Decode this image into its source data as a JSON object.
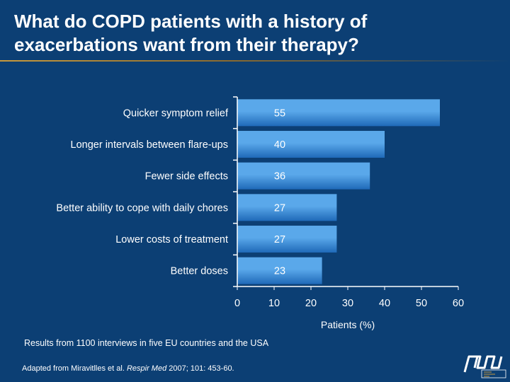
{
  "slide": {
    "title": "What do COPD patients with a history of exacerbations want from their therapy?",
    "note": "Results from 1100 interviews in five EU countries and the USA",
    "source_prefix": "Adapted from Miravitlles et al. ",
    "source_journal": "Respir Med",
    "source_suffix": " 2007; 101: 453-60."
  },
  "colors": {
    "background": "#0c3f74",
    "bar_light": "#5aa8ea",
    "bar_dark": "#1f69b8",
    "axis": "#ffffff",
    "accent_rule": "#c99a3c"
  },
  "chart_data": {
    "type": "bar",
    "orientation": "horizontal",
    "categories": [
      "Quicker symptom relief",
      "Longer intervals between flare-ups",
      "Fewer side effects",
      "Better ability to cope with daily chores",
      "Lower costs of treatment",
      "Better doses"
    ],
    "values": [
      55,
      40,
      36,
      27,
      27,
      23
    ],
    "data_labels": [
      "55",
      "40",
      "36",
      "27",
      "27",
      "23"
    ],
    "xlabel": "Patients (%)",
    "xlim": [
      0,
      60
    ],
    "xticks": [
      0,
      10,
      20,
      30,
      40,
      50,
      60
    ],
    "grid": false,
    "legend": "none"
  }
}
